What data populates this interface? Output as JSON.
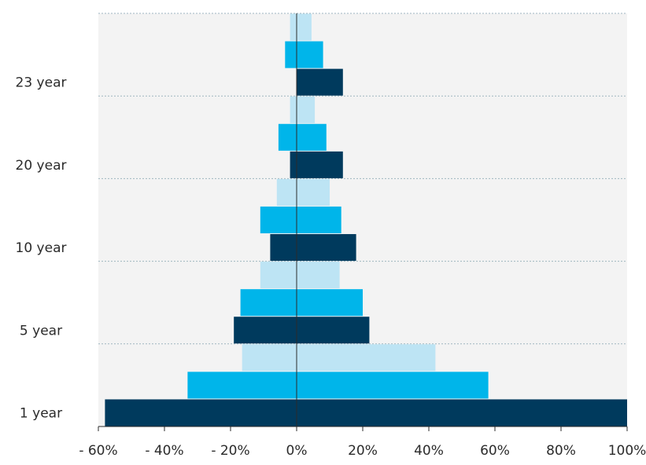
{
  "chart_data": {
    "type": "bar",
    "orientation": "horizontal",
    "layout": "diverging",
    "title": "",
    "xlabel": "",
    "ylabel": "",
    "categories": [
      "1 year",
      "5 year",
      "10 year",
      "20 year",
      "23 year"
    ],
    "xlim": [
      -60,
      100
    ],
    "x_ticks": [
      -60,
      -40,
      -20,
      0,
      20,
      40,
      60,
      80,
      100
    ],
    "x_tick_labels": [
      "- 60%",
      "- 40%",
      "- 20%",
      "0%",
      "20%",
      "40%",
      "60%",
      "80%",
      "100%"
    ],
    "grid": "horizontal dashed",
    "legend": "none",
    "colors": [
      "#003a5d",
      "#00b5ea",
      "#bde4f4"
    ],
    "series": [
      {
        "values_low": [
          -58,
          -19,
          -8,
          -2,
          0
        ],
        "values_high": [
          100,
          22,
          18,
          14,
          14
        ]
      },
      {
        "values_low": [
          -33,
          -17,
          -11,
          -5.5,
          -3.5
        ],
        "values_high": [
          58,
          20,
          13.5,
          9,
          8
        ]
      },
      {
        "values_low": [
          -16.5,
          -11,
          -6,
          -2,
          -2
        ],
        "values_high": [
          42,
          13,
          10,
          5.5,
          4.5
        ]
      }
    ]
  }
}
